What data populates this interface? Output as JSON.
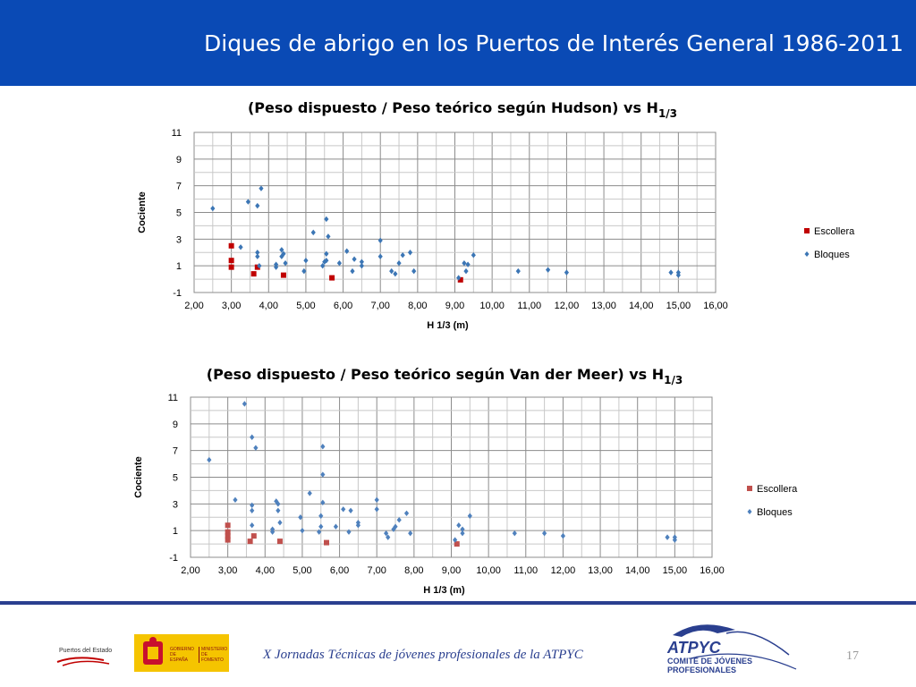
{
  "header": {
    "title": "Diques de abrigo en los Puertos de Interés General  1986-2011"
  },
  "footer": {
    "text": "X Jornadas Técnicas de jóvenes profesionales de la ATPYC",
    "page_number": "17",
    "logo_puertos": "Puertos del Estado",
    "logo_gobierno": "GOBIERNO DE ESPAÑA",
    "logo_ministerio": "MINISTERIO DE FOMENTO",
    "logo_atpyc": "ATPYC",
    "logo_atpyc_sub1": "COMITÉ DE JÓVENES",
    "logo_atpyc_sub2": "PROFESIONALES"
  },
  "chart_data": [
    {
      "type": "scatter",
      "title_main": "(Peso dispuesto / Peso teórico según Hudson)  vs  H",
      "title_sub": "1/3",
      "xlabel": "H 1/3 (m)",
      "ylabel": "Cociente",
      "xlim": [
        2,
        16
      ],
      "ylim": [
        -1,
        11
      ],
      "xticks": [
        "2,00",
        "3,00",
        "4,00",
        "5,00",
        "6,00",
        "7,00",
        "8,00",
        "9,00",
        "10,00",
        "11,00",
        "12,00",
        "13,00",
        "14,00",
        "15,00",
        "16,00"
      ],
      "yticks": [
        "-1",
        "1",
        "3",
        "5",
        "7",
        "9",
        "11"
      ],
      "grid": true,
      "legend_position": "right",
      "series": [
        {
          "name": "Escollera",
          "marker": "square",
          "color": "#c00000",
          "points": [
            [
              3.0,
              2.5
            ],
            [
              3.0,
              1.4
            ],
            [
              3.0,
              0.9
            ],
            [
              3.6,
              0.4
            ],
            [
              3.7,
              0.9
            ],
            [
              4.4,
              0.3
            ],
            [
              5.7,
              0.1
            ],
            [
              9.15,
              -0.05
            ]
          ]
        },
        {
          "name": "Bloques",
          "marker": "diamond",
          "color": "#3c76b5",
          "points": [
            [
              2.5,
              5.3
            ],
            [
              3.25,
              2.4
            ],
            [
              3.45,
              5.8
            ],
            [
              3.7,
              5.5
            ],
            [
              3.8,
              6.8
            ],
            [
              3.7,
              2.0
            ],
            [
              3.7,
              1.7
            ],
            [
              3.75,
              1.0
            ],
            [
              4.2,
              1.1
            ],
            [
              4.2,
              0.9
            ],
            [
              4.35,
              2.2
            ],
            [
              4.35,
              1.7
            ],
            [
              4.4,
              1.9
            ],
            [
              4.45,
              1.2
            ],
            [
              4.95,
              0.6
            ],
            [
              5.0,
              1.4
            ],
            [
              5.2,
              3.5
            ],
            [
              5.45,
              1.0
            ],
            [
              5.5,
              1.3
            ],
            [
              5.55,
              1.4
            ],
            [
              5.55,
              1.9
            ],
            [
              5.55,
              4.5
            ],
            [
              5.6,
              3.2
            ],
            [
              5.9,
              1.2
            ],
            [
              6.1,
              2.1
            ],
            [
              6.25,
              0.6
            ],
            [
              6.3,
              1.5
            ],
            [
              6.5,
              1.3
            ],
            [
              6.5,
              1.0
            ],
            [
              7.0,
              2.9
            ],
            [
              7.0,
              1.7
            ],
            [
              7.3,
              0.6
            ],
            [
              7.4,
              0.4
            ],
            [
              7.5,
              1.2
            ],
            [
              7.6,
              1.8
            ],
            [
              7.8,
              2.0
            ],
            [
              7.9,
              0.6
            ],
            [
              9.1,
              0.1
            ],
            [
              9.25,
              1.2
            ],
            [
              9.3,
              0.6
            ],
            [
              9.35,
              1.1
            ],
            [
              9.5,
              1.8
            ],
            [
              10.7,
              0.6
            ],
            [
              11.5,
              0.7
            ],
            [
              12.0,
              0.5
            ],
            [
              14.8,
              0.5
            ],
            [
              15.0,
              0.5
            ],
            [
              15.0,
              0.3
            ]
          ]
        }
      ]
    },
    {
      "type": "scatter",
      "title_main": "(Peso  dispuesto / Peso teórico según Van der Meer)  vs  H",
      "title_sub": "1/3",
      "xlabel": "H 1/3 (m)",
      "ylabel": "Cociente",
      "xlim": [
        2,
        16
      ],
      "ylim": [
        -1,
        11
      ],
      "xticks": [
        "2,00",
        "3,00",
        "4,00",
        "5,00",
        "6,00",
        "7,00",
        "8,00",
        "9,00",
        "10,00",
        "11,00",
        "12,00",
        "13,00",
        "14,00",
        "15,00",
        "16,00"
      ],
      "yticks": [
        "-1",
        "1",
        "3",
        "5",
        "7",
        "9",
        "11"
      ],
      "grid": true,
      "legend_position": "right",
      "series": [
        {
          "name": "Escollera",
          "marker": "square",
          "color": "#c0504d",
          "points": [
            [
              3.0,
              1.4
            ],
            [
              3.0,
              0.9
            ],
            [
              3.0,
              0.6
            ],
            [
              3.0,
              0.3
            ],
            [
              3.6,
              0.2
            ],
            [
              3.7,
              0.6
            ],
            [
              4.4,
              0.2
            ],
            [
              5.65,
              0.1
            ],
            [
              9.15,
              0.0
            ]
          ]
        },
        {
          "name": "Bloques",
          "marker": "diamond",
          "color": "#4f81bd",
          "points": [
            [
              2.5,
              6.3
            ],
            [
              3.2,
              3.3
            ],
            [
              3.45,
              10.5
            ],
            [
              3.65,
              8.0
            ],
            [
              3.75,
              7.2
            ],
            [
              3.65,
              2.9
            ],
            [
              3.65,
              2.5
            ],
            [
              3.65,
              1.4
            ],
            [
              4.2,
              1.1
            ],
            [
              4.2,
              0.9
            ],
            [
              4.3,
              3.2
            ],
            [
              4.35,
              3.0
            ],
            [
              4.35,
              2.5
            ],
            [
              4.4,
              1.6
            ],
            [
              4.95,
              2.0
            ],
            [
              5.0,
              1.0
            ],
            [
              5.2,
              3.8
            ],
            [
              5.45,
              0.9
            ],
            [
              5.5,
              2.1
            ],
            [
              5.5,
              1.3
            ],
            [
              5.55,
              3.1
            ],
            [
              5.55,
              5.2
            ],
            [
              5.55,
              7.3
            ],
            [
              5.9,
              1.3
            ],
            [
              6.1,
              2.6
            ],
            [
              6.25,
              0.9
            ],
            [
              6.3,
              2.5
            ],
            [
              6.5,
              1.6
            ],
            [
              6.5,
              1.4
            ],
            [
              7.0,
              3.3
            ],
            [
              7.0,
              2.6
            ],
            [
              7.25,
              0.8
            ],
            [
              7.3,
              0.5
            ],
            [
              7.45,
              1.1
            ],
            [
              7.5,
              1.3
            ],
            [
              7.6,
              1.8
            ],
            [
              7.8,
              2.3
            ],
            [
              7.9,
              0.8
            ],
            [
              9.1,
              0.3
            ],
            [
              9.2,
              1.4
            ],
            [
              9.3,
              0.8
            ],
            [
              9.3,
              1.1
            ],
            [
              9.5,
              2.1
            ],
            [
              10.7,
              0.8
            ],
            [
              11.5,
              0.8
            ],
            [
              12.0,
              0.6
            ],
            [
              14.8,
              0.5
            ],
            [
              15.0,
              0.5
            ],
            [
              15.0,
              0.3
            ]
          ]
        }
      ]
    }
  ]
}
